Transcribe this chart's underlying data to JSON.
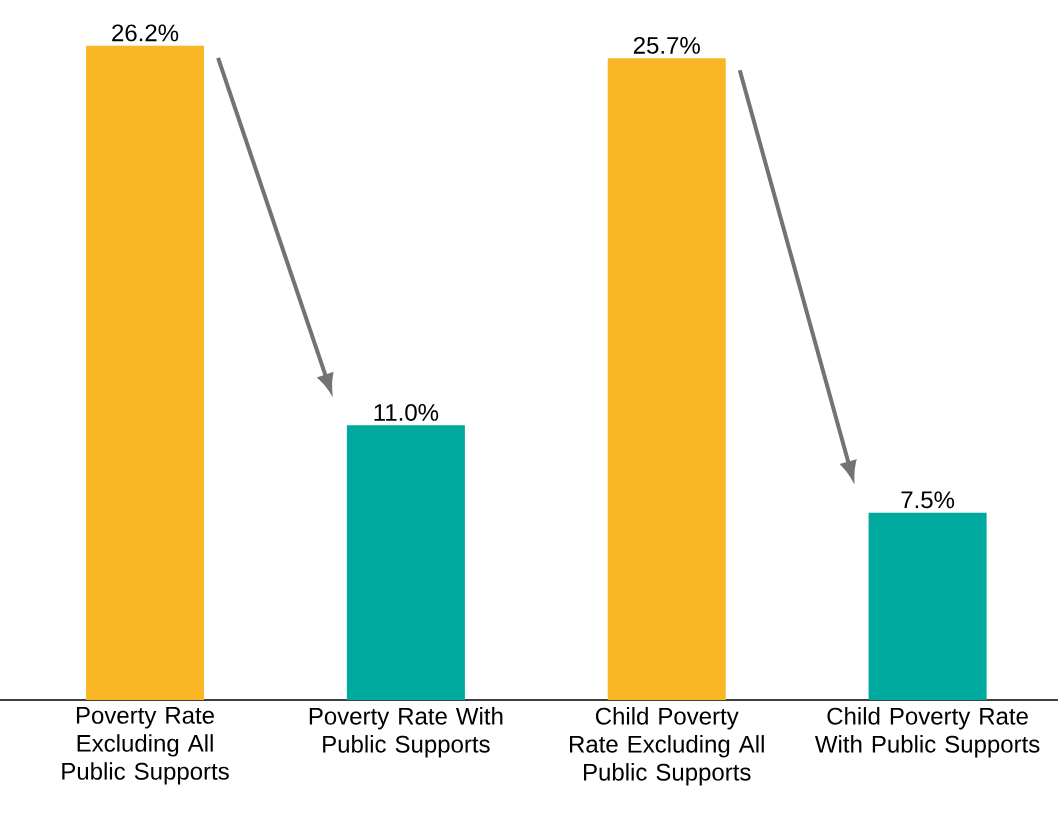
{
  "chart_data": {
    "type": "bar",
    "categories": [
      "Poverty Rate Excluding All Public Supports",
      "Poverty Rate With Public Supports",
      "Child Poverty Rate Excluding All Public Supports",
      "Child Poverty Rate With Public Supports"
    ],
    "values": [
      26.2,
      11.0,
      25.7,
      7.5
    ],
    "colors": [
      "#f9b625",
      "#00a99d",
      "#f9b625",
      "#00a99d"
    ],
    "value_labels": [
      "26.2%",
      "11.0%",
      "25.7%",
      "7.5%"
    ]
  }
}
